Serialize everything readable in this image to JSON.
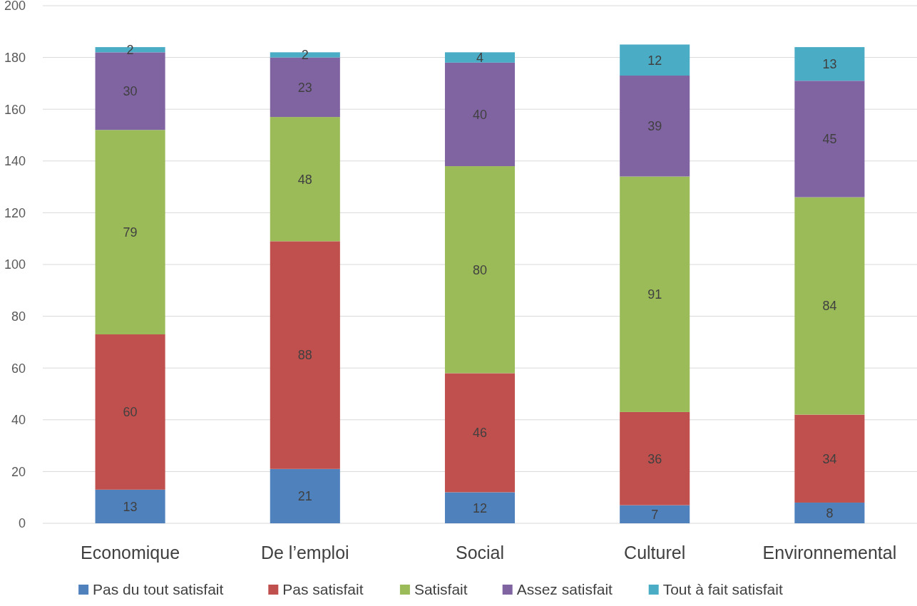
{
  "chart_data": {
    "type": "bar",
    "stacked": true,
    "categories": [
      "Economique",
      "De l’emploi",
      "Social",
      "Culturel",
      "Environnemental"
    ],
    "series": [
      {
        "name": "Pas du tout satisfait",
        "color": "#4f81bd",
        "values": [
          13,
          21,
          12,
          7,
          8
        ]
      },
      {
        "name": "Pas satisfait",
        "color": "#c0504d",
        "values": [
          60,
          88,
          46,
          36,
          34
        ]
      },
      {
        "name": "Satisfait",
        "color": "#9bbb59",
        "values": [
          79,
          48,
          80,
          91,
          84
        ]
      },
      {
        "name": "Assez satisfait",
        "color": "#8064a2",
        "values": [
          30,
          23,
          40,
          39,
          45
        ]
      },
      {
        "name": "Tout à fait satisfait",
        "color": "#4bacc6",
        "values": [
          2,
          2,
          4,
          12,
          13
        ]
      }
    ],
    "ylim": [
      0,
      200
    ],
    "yticks": [
      0,
      20,
      40,
      60,
      80,
      100,
      120,
      140,
      160,
      180,
      200
    ],
    "grid": "y",
    "legend": "bottom",
    "data_labels": true
  }
}
